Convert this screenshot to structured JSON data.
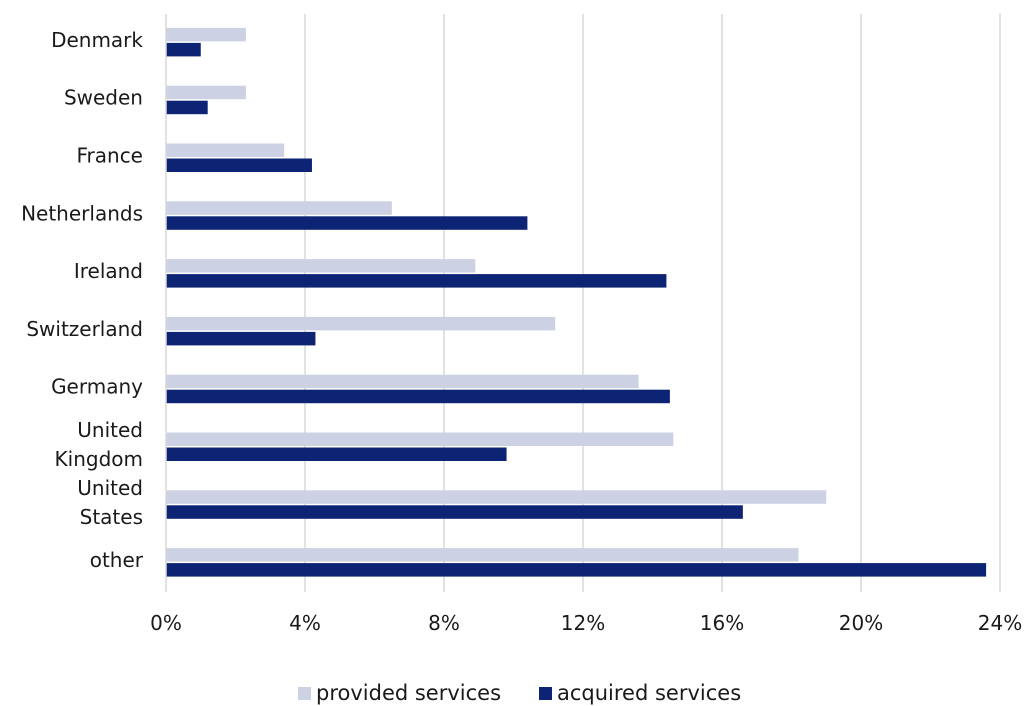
{
  "chart_data": {
    "type": "bar",
    "orientation": "horizontal",
    "categories": [
      "Denmark",
      "Sweden",
      "France",
      "Netherlands",
      "Ireland",
      "Switzerland",
      "Germany",
      "United Kingdom",
      "United States",
      "other"
    ],
    "category_lines": [
      [
        "Denmark"
      ],
      [
        "Sweden"
      ],
      [
        "France"
      ],
      [
        "Netherlands"
      ],
      [
        "Ireland"
      ],
      [
        "Switzerland"
      ],
      [
        "Germany"
      ],
      [
        "United",
        "Kingdom"
      ],
      [
        "United",
        "States"
      ],
      [
        "other"
      ]
    ],
    "series": [
      {
        "name": "provided services",
        "color": "#cdd1e4",
        "values": [
          2.3,
          2.3,
          3.4,
          6.5,
          8.9,
          11.2,
          13.6,
          14.6,
          19.0,
          18.2
        ]
      },
      {
        "name": "acquired services",
        "color": "#0d2474",
        "values": [
          1.0,
          1.2,
          4.2,
          10.4,
          14.4,
          4.3,
          14.5,
          9.8,
          16.6,
          23.6
        ]
      }
    ],
    "xlim": [
      0,
      24
    ],
    "xticks": [
      0,
      4,
      8,
      12,
      16,
      20,
      24
    ],
    "xtick_labels": [
      "0%",
      "4%",
      "8%",
      "12%",
      "16%",
      "20%",
      "24%"
    ],
    "grid": "vertical",
    "grid_color": "#d9d9d9",
    "legend_position": "bottom",
    "title": "",
    "xlabel": "",
    "ylabel": ""
  }
}
